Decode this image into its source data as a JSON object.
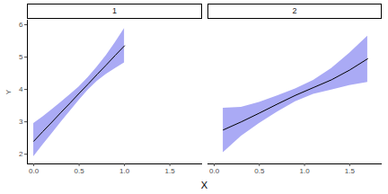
{
  "chart_data": {
    "type": "line",
    "x_label": "X",
    "y_label": "Y",
    "xlim": [
      -0.07,
      1.86
    ],
    "xticks": [
      {
        "value": 0,
        "label": "0.0"
      },
      {
        "value": 0.5,
        "label": "0.5"
      },
      {
        "value": 1,
        "label": "1.0"
      },
      {
        "value": 1.5,
        "label": "1.5"
      }
    ],
    "ylim": [
      1.7,
      6.14
    ],
    "yticks": [
      2,
      3,
      4,
      5,
      6
    ],
    "grid": false,
    "series": [
      {
        "name": "1",
        "color": "#aaaaf5",
        "x": [
          0,
          0.1,
          0.2,
          0.3,
          0.4,
          0.5,
          0.6,
          0.7,
          0.8,
          0.9,
          1.0
        ],
        "values": [
          2.4,
          2.7,
          2.99,
          3.29,
          3.58,
          3.88,
          4.17,
          4.47,
          4.76,
          5.06,
          5.35
        ],
        "lower": [
          1.92,
          2.28,
          2.63,
          2.98,
          3.32,
          3.66,
          3.98,
          4.25,
          4.47,
          4.65,
          4.82
        ],
        "upper": [
          2.95,
          3.15,
          3.37,
          3.6,
          3.84,
          4.08,
          4.37,
          4.7,
          5.05,
          5.45,
          5.88
        ]
      },
      {
        "name": "2",
        "color": "#aaaaf5",
        "x": [
          0.1,
          0.3,
          0.5,
          0.7,
          0.9,
          1.1,
          1.3,
          1.5,
          1.7
        ],
        "values": [
          2.75,
          3.0,
          3.27,
          3.55,
          3.82,
          4.06,
          4.3,
          4.6,
          4.95
        ],
        "lower": [
          2.05,
          2.55,
          2.95,
          3.3,
          3.62,
          3.85,
          3.98,
          4.12,
          4.22
        ],
        "upper": [
          3.42,
          3.45,
          3.6,
          3.8,
          4.02,
          4.28,
          4.65,
          5.12,
          5.65
        ]
      }
    ]
  }
}
